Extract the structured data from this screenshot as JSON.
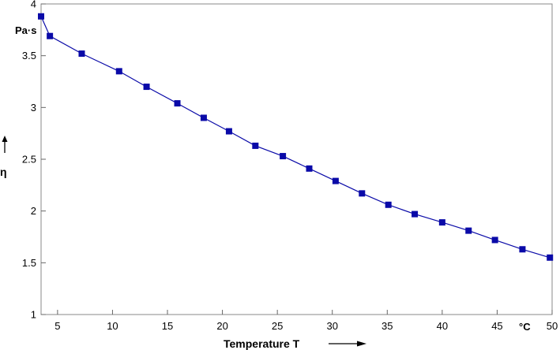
{
  "chart_data": {
    "type": "line",
    "title": "",
    "xlabel": "Temperature T",
    "ylabel": "η",
    "x_unit": "°C",
    "y_unit": "Pa·s",
    "xlim": [
      3.5,
      50
    ],
    "ylim": [
      1,
      4
    ],
    "x_ticks": [
      5,
      10,
      15,
      20,
      25,
      30,
      35,
      40,
      45,
      50
    ],
    "y_ticks": [
      1,
      1.5,
      2,
      2.5,
      3,
      3.5,
      4
    ],
    "grid": false,
    "legend": "none",
    "series": [
      {
        "x": [
          3.5,
          4.3,
          7.2,
          10.6,
          13.1,
          15.9,
          18.3,
          20.6,
          23.0,
          25.5,
          27.9,
          30.3,
          32.7,
          35.1,
          37.5,
          40.0,
          42.4,
          44.8,
          47.3,
          49.8
        ],
        "y": [
          3.88,
          3.69,
          3.52,
          3.35,
          3.2,
          3.04,
          2.9,
          2.77,
          2.63,
          2.53,
          2.41,
          2.29,
          2.17,
          2.06,
          1.97,
          1.89,
          1.81,
          1.72,
          1.63,
          1.55
        ],
        "color": "#0a0aa8",
        "marker": "square"
      }
    ]
  }
}
